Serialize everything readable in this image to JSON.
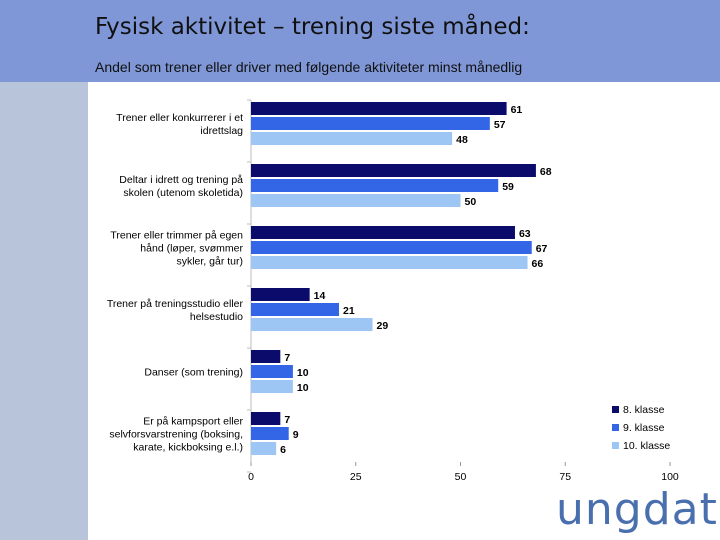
{
  "header": {
    "title": "Fysisk aktivitet – trening siste måned:",
    "subtitle": "Andel som trener eller driver med følgende aktiviteter minst månedlig"
  },
  "logo": {
    "text": "ungdata"
  },
  "colors": {
    "header_bg": "#7f97d6",
    "left_band": "#b8c4d9",
    "series": [
      "#0b0b6b",
      "#3366e6",
      "#9ec6f5"
    ]
  },
  "chart_data": {
    "type": "bar",
    "orientation": "horizontal",
    "title": "",
    "xlabel": "",
    "ylabel": "",
    "xlim": [
      0,
      100
    ],
    "xticks": [
      0,
      25,
      50,
      75,
      100
    ],
    "grid": false,
    "legend_position": "bottom-right",
    "categories": [
      [
        "Trener eller konkurrerer i et",
        "idrettslag"
      ],
      [
        "Deltar i idrett og trening på",
        "skolen (utenom skoletida)"
      ],
      [
        "Trener eller trimmer på egen",
        "hånd (løper, svømmer",
        "sykler, går tur)"
      ],
      [
        "Trener på treningsstudio eller",
        "helsestudio"
      ],
      [
        "Danser (som trening)"
      ],
      [
        "Er på kampsport eller",
        "selvforsvarstrening (boksing,",
        "karate, kickboksing e.l.)"
      ]
    ],
    "series": [
      {
        "name": "8. klasse",
        "values": [
          61,
          68,
          63,
          14,
          7,
          7
        ]
      },
      {
        "name": "9. klasse",
        "values": [
          57,
          59,
          67,
          21,
          10,
          9
        ]
      },
      {
        "name": "10. klasse",
        "values": [
          48,
          50,
          66,
          29,
          10,
          6
        ]
      }
    ]
  }
}
